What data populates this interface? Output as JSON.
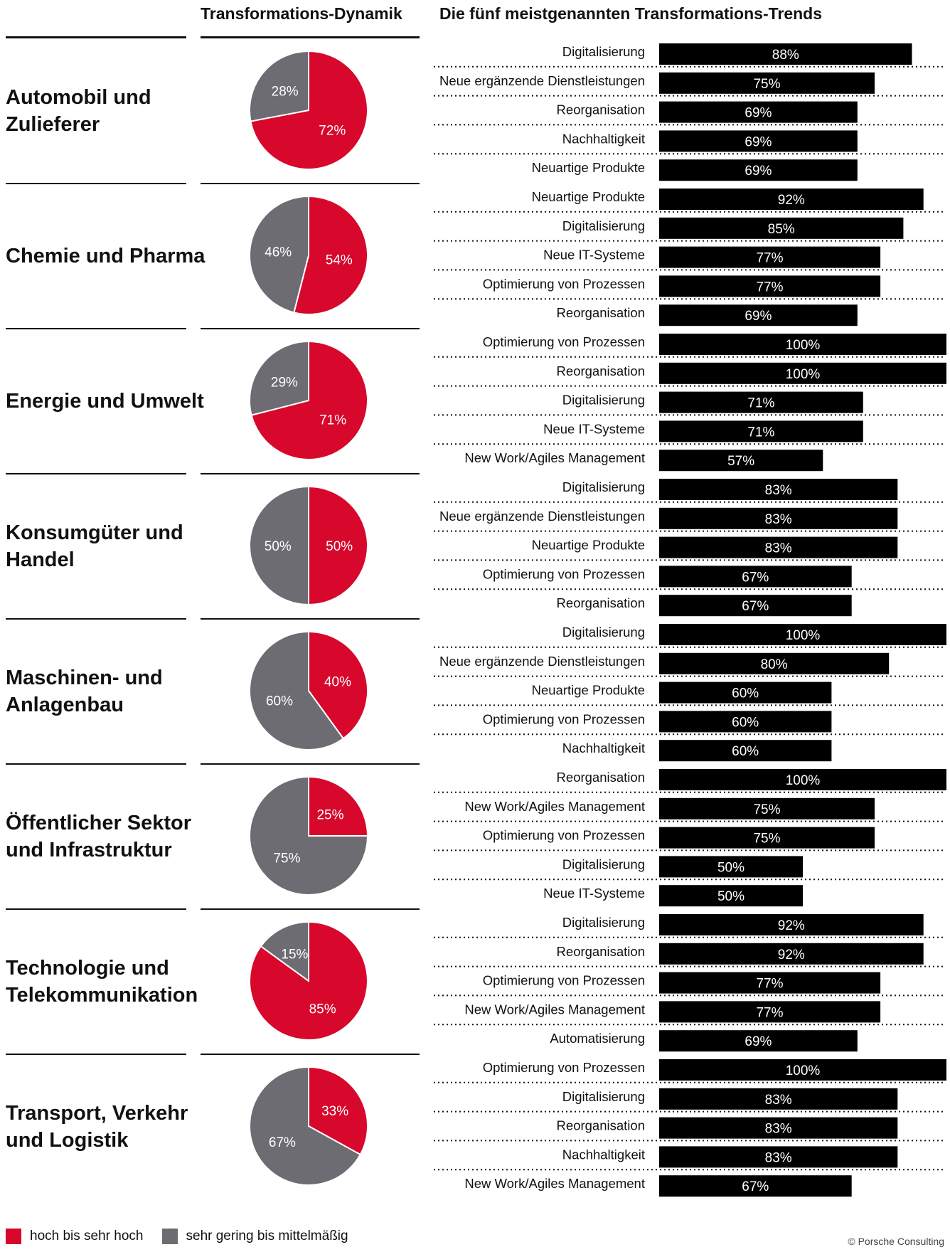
{
  "headers": {
    "dynamics": "Transformations-Dynamik",
    "trends": "Die fünf meistgenannten Transformations-Trends"
  },
  "colors": {
    "high": "#d7082b",
    "low": "#6d6c72",
    "bar": "#000000",
    "text": "#111111"
  },
  "legend": {
    "high": "hoch bis sehr hoch",
    "low": "sehr gering bis mittelmäßig"
  },
  "credit": "© Porsche Consulting",
  "chart_data": [
    {
      "type": "pie",
      "category": "Automobil und Zulieferer",
      "slices": [
        {
          "label": "72%",
          "value": 72,
          "group": "high"
        },
        {
          "label": "28%",
          "value": 28,
          "group": "low"
        }
      ],
      "trends": [
        {
          "name": "Digitalisierung",
          "value": 88
        },
        {
          "name": "Neue ergänzende Dienstleistungen",
          "value": 75
        },
        {
          "name": "Reorganisation",
          "value": 69
        },
        {
          "name": "Nachhaltigkeit",
          "value": 69
        },
        {
          "name": "Neuartige Produkte",
          "value": 69
        }
      ]
    },
    {
      "type": "pie",
      "category": "Chemie und Pharma",
      "slices": [
        {
          "label": "54%",
          "value": 54,
          "group": "high"
        },
        {
          "label": "46%",
          "value": 46,
          "group": "low"
        }
      ],
      "trends": [
        {
          "name": "Neuartige Produkte",
          "value": 92
        },
        {
          "name": "Digitalisierung",
          "value": 85
        },
        {
          "name": "Neue IT-Systeme",
          "value": 77
        },
        {
          "name": "Optimierung von Prozessen",
          "value": 77
        },
        {
          "name": "Reorganisation",
          "value": 69
        }
      ]
    },
    {
      "type": "pie",
      "category": "Energie und Umwelt",
      "slices": [
        {
          "label": "71%",
          "value": 71,
          "group": "high"
        },
        {
          "label": "29%",
          "value": 29,
          "group": "low"
        }
      ],
      "trends": [
        {
          "name": "Optimierung von Prozessen",
          "value": 100
        },
        {
          "name": "Reorganisation",
          "value": 100
        },
        {
          "name": "Digitalisierung",
          "value": 71
        },
        {
          "name": "Neue IT-Systeme",
          "value": 71
        },
        {
          "name": "New Work/Agiles Management",
          "value": 57
        }
      ]
    },
    {
      "type": "pie",
      "category": "Konsumgüter und Handel",
      "slices": [
        {
          "label": "50%",
          "value": 50,
          "group": "high"
        },
        {
          "label": "50%",
          "value": 50,
          "group": "low"
        }
      ],
      "trends": [
        {
          "name": "Digitalisierung",
          "value": 83
        },
        {
          "name": "Neue ergänzende Dienstleistungen",
          "value": 83
        },
        {
          "name": "Neuartige Produkte",
          "value": 83
        },
        {
          "name": "Optimierung von Prozessen",
          "value": 67
        },
        {
          "name": "Reorganisation",
          "value": 67
        }
      ]
    },
    {
      "type": "pie",
      "category": "Maschinen- und Anlagenbau",
      "slices": [
        {
          "label": "40%",
          "value": 40,
          "group": "high"
        },
        {
          "label": "60%",
          "value": 60,
          "group": "low"
        }
      ],
      "trends": [
        {
          "name": "Digitalisierung",
          "value": 100
        },
        {
          "name": "Neue ergänzende Dienstleistungen",
          "value": 80
        },
        {
          "name": "Neuartige Produkte",
          "value": 60
        },
        {
          "name": "Optimierung von Prozessen",
          "value": 60
        },
        {
          "name": "Nachhaltigkeit",
          "value": 60
        }
      ]
    },
    {
      "type": "pie",
      "category": "Öffentlicher Sektor und Infrastruktur",
      "slices": [
        {
          "label": "25%",
          "value": 25,
          "group": "high"
        },
        {
          "label": "75%",
          "value": 75,
          "group": "low"
        }
      ],
      "trends": [
        {
          "name": "Reorganisation",
          "value": 100
        },
        {
          "name": "New Work/Agiles Management",
          "value": 75
        },
        {
          "name": "Optimierung von Prozessen",
          "value": 75
        },
        {
          "name": "Digitalisierung",
          "value": 50
        },
        {
          "name": "Neue IT-Systeme",
          "value": 50
        }
      ]
    },
    {
      "type": "pie",
      "category": "Technologie und Telekommunikation",
      "slices": [
        {
          "label": "85%",
          "value": 85,
          "group": "high"
        },
        {
          "label": "15%",
          "value": 15,
          "group": "low"
        }
      ],
      "trends": [
        {
          "name": "Digitalisierung",
          "value": 92
        },
        {
          "name": "Reorganisation",
          "value": 92
        },
        {
          "name": "Optimierung von Prozessen",
          "value": 77
        },
        {
          "name": "New Work/Agiles Management",
          "value": 77
        },
        {
          "name": "Automatisierung",
          "value": 69
        }
      ]
    },
    {
      "type": "pie",
      "category": "Transport, Verkehr und Logistik",
      "slices": [
        {
          "label": "33%",
          "value": 33,
          "group": "high"
        },
        {
          "label": "67%",
          "value": 67,
          "group": "low"
        }
      ],
      "trends": [
        {
          "name": "Optimierung von Prozessen",
          "value": 100
        },
        {
          "name": "Digitalisierung",
          "value": 83
        },
        {
          "name": "Reorganisation",
          "value": 83
        },
        {
          "name": "Nachhaltigkeit",
          "value": 83
        },
        {
          "name": "New Work/Agiles Management",
          "value": 67
        }
      ]
    }
  ]
}
